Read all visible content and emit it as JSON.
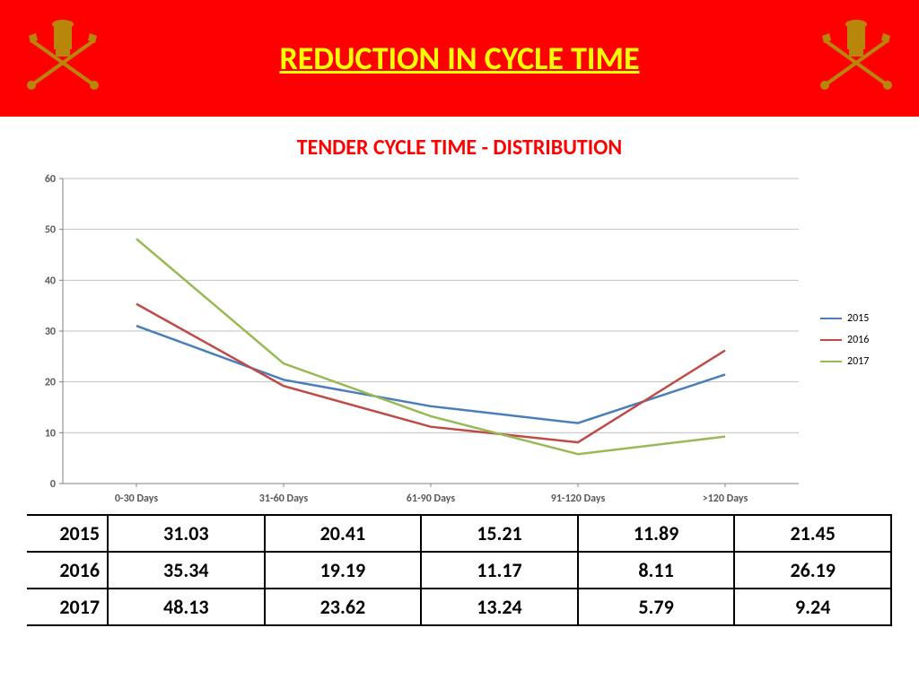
{
  "header": {
    "title": "REDUCTION IN CYCLE TIME",
    "bg": "#ff0000",
    "title_color": "#ffff00"
  },
  "chart": {
    "title": "TENDER CYCLE TIME - DISTRIBUTION",
    "title_color": "#ff0000",
    "title_fontsize": 24,
    "type": "line",
    "categories": [
      "0-30 Days",
      "31-60 Days",
      "61-90 Days",
      "91-120 Days",
      ">120 Days"
    ],
    "series": [
      {
        "name": "2015",
        "color": "#4a7ebb",
        "values": [
          31.03,
          20.41,
          15.21,
          11.89,
          21.45
        ]
      },
      {
        "name": "2016",
        "color": "#be4b48",
        "values": [
          35.34,
          19.19,
          11.17,
          8.11,
          26.19
        ]
      },
      {
        "name": "2017",
        "color": "#98b954",
        "values": [
          48.13,
          23.62,
          13.24,
          5.79,
          9.24
        ]
      }
    ],
    "ylim": [
      0,
      60
    ],
    "ytick_step": 10,
    "grid_color": "#bfbfbf",
    "axis_color": "#808080",
    "axis_label_color": "#595959",
    "axis_label_fontsize": 12,
    "line_width": 2.5,
    "plot_bg": "#ffffff"
  },
  "table": {
    "rows": [
      {
        "year": "2015",
        "cells": [
          "31.03",
          "20.41",
          "15.21",
          "11.89",
          "21.45"
        ]
      },
      {
        "year": "2016",
        "cells": [
          "35.34",
          "19.19",
          "11.17",
          "8.11",
          "26.19"
        ]
      },
      {
        "year": "2017",
        "cells": [
          "48.13",
          "23.62",
          "13.24",
          "5.79",
          "9.24"
        ]
      }
    ]
  }
}
